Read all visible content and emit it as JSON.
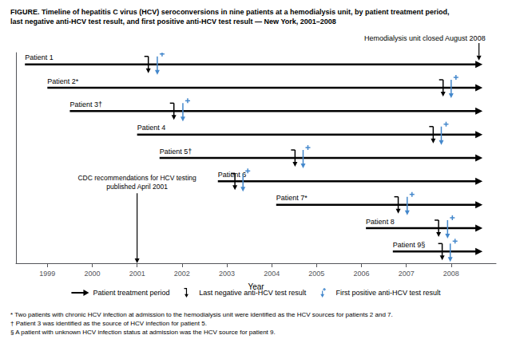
{
  "chart_data": {
    "type": "timeline",
    "title": "FIGURE. Timeline of hepatitis C virus (HCV) seroconversions in nine patients at a hemodialysis unit, by patient treatment period,\nlast negative anti-HCV test result, and first positive anti-HCV test result — New York, 2001–2008",
    "xlabel": "Year",
    "xlim": [
      1998.3,
      2009.0
    ],
    "xticks": [
      1999,
      2000,
      2001,
      2002,
      2003,
      2004,
      2005,
      2006,
      2007,
      2008
    ],
    "tick_labels": "x",
    "grid": false,
    "legend": "bottom",
    "categories": [
      "Patient 1",
      "Patient 2*",
      "Patient 3†",
      "Patient 4",
      "Patient 5†",
      "Patient 6",
      "Patient 7*",
      "Patient 8",
      "Patient 9§"
    ],
    "series": [
      {
        "name": "Patient treatment period",
        "type": "interval",
        "marker": "arrow",
        "color": "#000000",
        "values": [
          [
            1998.5,
            2008.7
          ],
          [
            1999.0,
            2008.7
          ],
          [
            1999.5,
            2008.7
          ],
          [
            2001.0,
            2008.7
          ],
          [
            2001.5,
            2008.7
          ],
          [
            2002.8,
            2008.7
          ],
          [
            2004.1,
            2008.7
          ],
          [
            2006.1,
            2008.7
          ],
          [
            2006.7,
            2008.7
          ]
        ]
      },
      {
        "name": "Last negative anti-HCV test result",
        "type": "event",
        "marker": "capped_arrow",
        "color": "#000000",
        "values": [
          2001.25,
          2007.82,
          2001.82,
          2007.6,
          2004.52,
          2003.18,
          2006.82,
          2007.72,
          2007.8
        ]
      },
      {
        "name": "First positive anti-HCV test result",
        "type": "event",
        "marker": "plus_arrow",
        "color": "#4488CC",
        "values": [
          2001.45,
          2008.0,
          2002.02,
          2007.78,
          2004.7,
          2003.36,
          2007.02,
          2007.92,
          2007.98
        ]
      }
    ],
    "annotations": [
      {
        "text": "Hemodialysis unit closed August 2008",
        "x": 2008.62
      },
      {
        "text": "CDC recommendations for HCV testing\npublished April 2001",
        "x": 2001.0
      }
    ],
    "footnotes": [
      "* Two patients with chronic HCV infection at admission to the hemodialysis unit were identified as the HCV sources for patients 2 and 7.",
      "† Patient 3 was identified as the source of HCV infection for patient 5.",
      "§ A patient with unknown HCV infection status at admission was the HCV source for patient 9."
    ]
  }
}
